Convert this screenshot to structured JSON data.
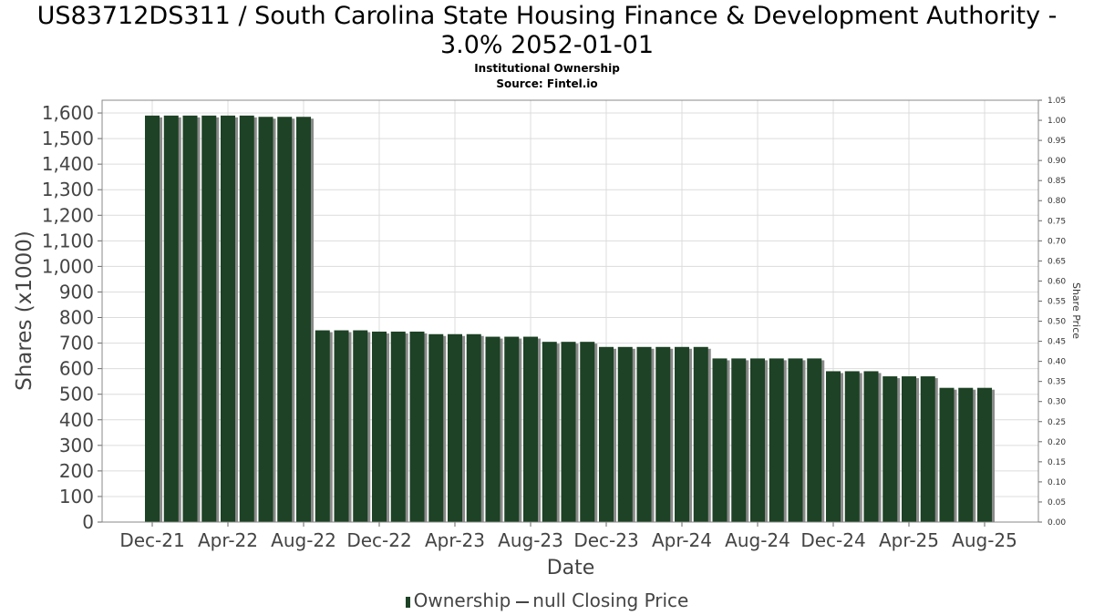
{
  "title": "US83712DS311 / South Carolina State Housing Finance & Development Authority -",
  "title_line2": "3.0% 2052-01-01",
  "subtitle": "Institutional Ownership",
  "source": "Source: Fintel.io",
  "legend": {
    "ownership": "Ownership",
    "price": "null Closing Price"
  },
  "colors": {
    "bar": "#1d4225",
    "bar_shadow": "#8a8a8a",
    "grid": "#dcdcdc"
  },
  "chart_data": {
    "type": "bar",
    "xlabel": "Date",
    "ylabel": "Shares (x1000)",
    "y2label": "Share Price",
    "ylim": [
      0,
      1650
    ],
    "y2lim": [
      0,
      1.05
    ],
    "yticks": [
      0,
      100,
      200,
      300,
      400,
      500,
      600,
      700,
      800,
      900,
      1000,
      1100,
      1200,
      1300,
      1400,
      1500,
      1600
    ],
    "y2ticks": [
      "0.00",
      "0.05",
      "0.10",
      "0.15",
      "0.20",
      "0.25",
      "0.30",
      "0.35",
      "0.40",
      "0.45",
      "0.50",
      "0.55",
      "0.60",
      "0.65",
      "0.70",
      "0.75",
      "0.80",
      "0.85",
      "0.90",
      "0.95",
      "1.00",
      "1.05"
    ],
    "xticks": [
      "Dec-21",
      "Apr-22",
      "Aug-22",
      "Dec-22",
      "Apr-23",
      "Aug-23",
      "Dec-23",
      "Apr-24",
      "Aug-24",
      "Dec-24",
      "Apr-25",
      "Aug-25"
    ],
    "grid": true,
    "legend_position": "bottom",
    "series": [
      {
        "name": "Ownership",
        "values": [
          1590,
          1590,
          1590,
          1590,
          1590,
          1590,
          1585,
          1585,
          1585,
          750,
          750,
          750,
          745,
          745,
          745,
          735,
          735,
          735,
          725,
          725,
          725,
          705,
          705,
          705,
          685,
          685,
          685,
          685,
          685,
          685,
          640,
          640,
          640,
          640,
          640,
          640,
          590,
          590,
          590,
          570,
          570,
          570,
          525,
          525,
          525
        ]
      }
    ]
  }
}
